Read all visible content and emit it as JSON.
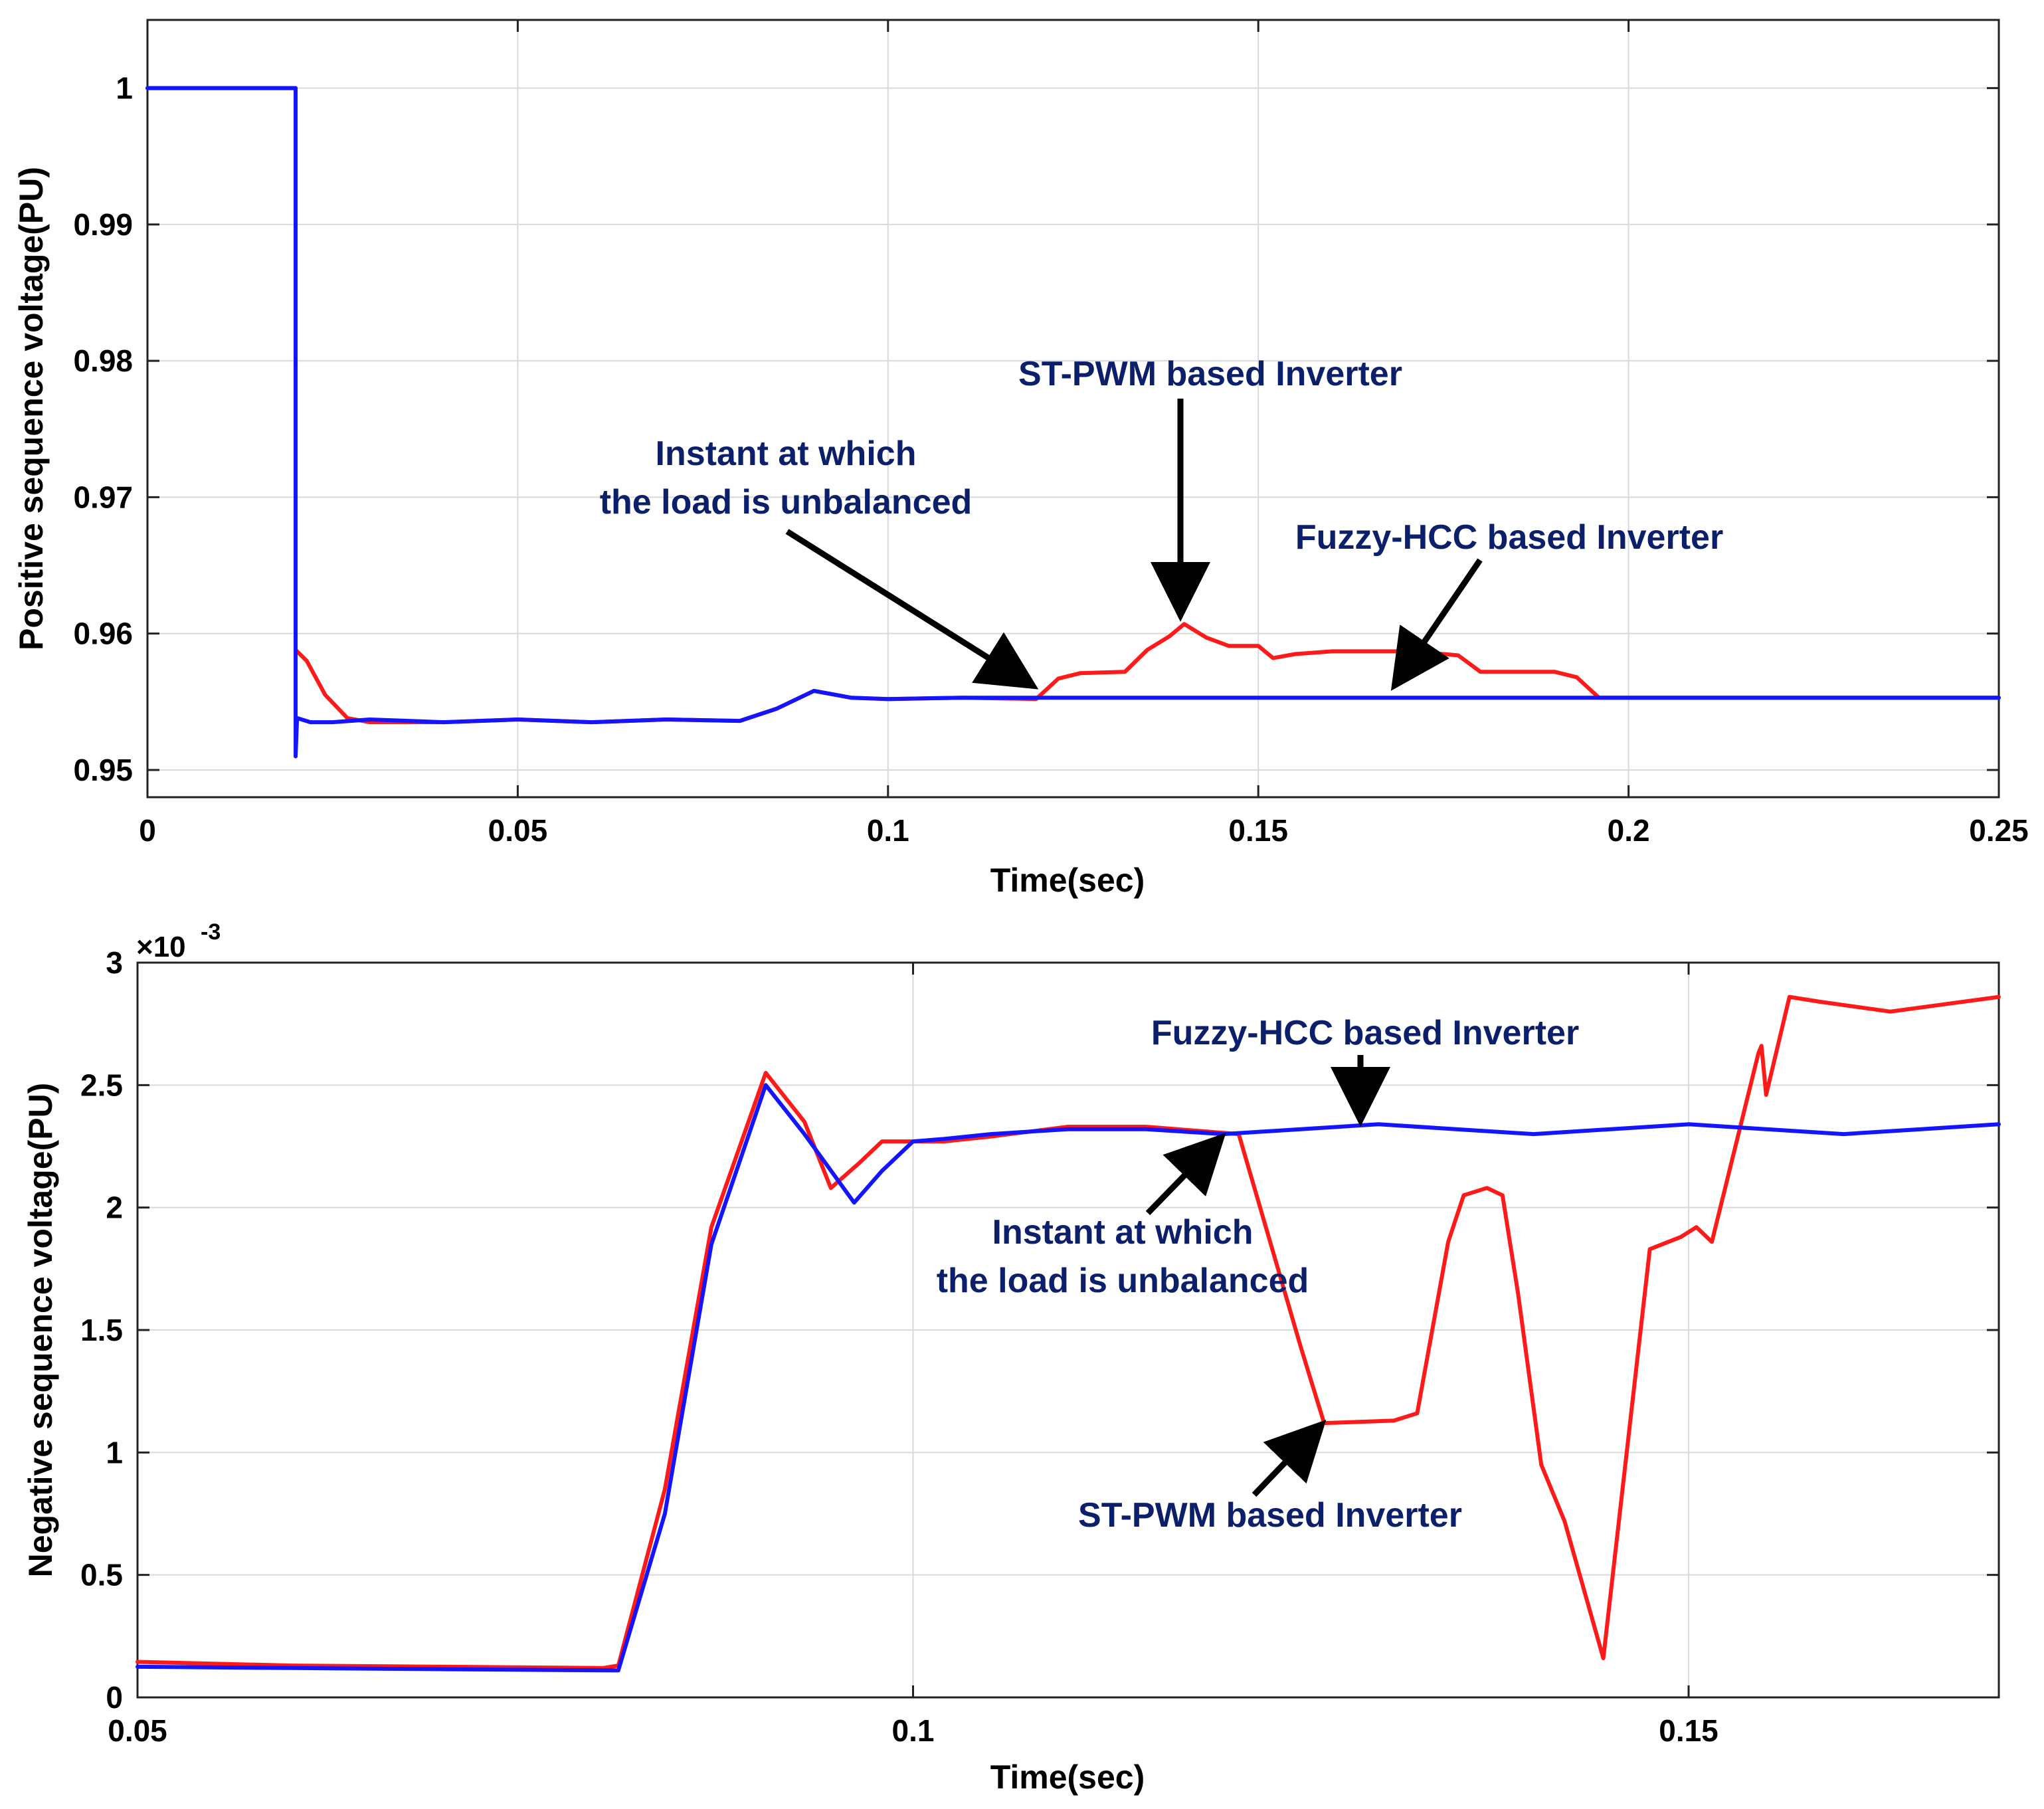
{
  "colors": {
    "st_pwm": "#ff1a1a",
    "fuzzy": "#1414ff",
    "annotation_text": "#0b1f6b",
    "grid": "#d9d9d9",
    "arrow": "#000000"
  },
  "chart_data": [
    {
      "type": "line",
      "xlabel": "Time(sec)",
      "ylabel": "Positive sequence voltage(PU)",
      "xlim": [
        0,
        0.25
      ],
      "ylim": [
        0.948,
        1.005
      ],
      "xticks": [
        0,
        0.05,
        0.1,
        0.15,
        0.2,
        0.25
      ],
      "xtick_labels": [
        "0",
        "0.05",
        "0.1",
        "0.15",
        "0.2",
        "0.25"
      ],
      "yticks": [
        0.95,
        0.96,
        0.97,
        0.98,
        0.99,
        1
      ],
      "ytick_labels": [
        "0.95",
        "0.96",
        "0.97",
        "0.98",
        "0.99",
        "1"
      ],
      "grid": true,
      "series": [
        {
          "name": "ST-PWM based Inverter",
          "color": "#ff1a1a",
          "x": [
            0,
            0.02,
            0.02,
            0.02,
            0.0215,
            0.024,
            0.027,
            0.03,
            0.04,
            0.05,
            0.06,
            0.07,
            0.08,
            0.085,
            0.09,
            0.095,
            0.1,
            0.11,
            0.12,
            0.123,
            0.126,
            0.132,
            0.135,
            0.138,
            0.14,
            0.143,
            0.146,
            0.15,
            0.152,
            0.155,
            0.16,
            0.17,
            0.175,
            0.177,
            0.18,
            0.19,
            0.193,
            0.196,
            0.2,
            0.22,
            0.25
          ],
          "y": [
            1.0,
            1.0,
            0.951,
            0.9588,
            0.958,
            0.9555,
            0.9538,
            0.9535,
            0.9535,
            0.9537,
            0.9535,
            0.9537,
            0.9536,
            0.9545,
            0.9558,
            0.9553,
            0.9552,
            0.9553,
            0.9552,
            0.9567,
            0.9571,
            0.9572,
            0.9588,
            0.9598,
            0.9607,
            0.9597,
            0.9591,
            0.9591,
            0.9582,
            0.9585,
            0.9587,
            0.9587,
            0.9585,
            0.9584,
            0.9572,
            0.9572,
            0.9568,
            0.9553,
            0.9553,
            0.9553,
            0.9553
          ]
        },
        {
          "name": "Fuzzy-HCC based Inverter",
          "color": "#1414ff",
          "x": [
            0,
            0.02,
            0.02,
            0.0202,
            0.022,
            0.025,
            0.03,
            0.04,
            0.05,
            0.06,
            0.07,
            0.08,
            0.085,
            0.09,
            0.095,
            0.1,
            0.11,
            0.12,
            0.13,
            0.14,
            0.15,
            0.16,
            0.17,
            0.18,
            0.19,
            0.2,
            0.25
          ],
          "y": [
            1.0,
            1.0,
            0.951,
            0.9538,
            0.9535,
            0.9535,
            0.9537,
            0.9535,
            0.9537,
            0.9535,
            0.9537,
            0.9536,
            0.9545,
            0.9558,
            0.9553,
            0.9552,
            0.9553,
            0.9553,
            0.9553,
            0.9553,
            0.9553,
            0.9553,
            0.9553,
            0.9553,
            0.9553,
            0.9553,
            0.9553
          ]
        }
      ],
      "annotations": [
        {
          "lines": [
            "ST-PWM based Inverter"
          ]
        },
        {
          "lines": [
            "Instant at which",
            "the load is unbalanced"
          ]
        },
        {
          "lines": [
            "Fuzzy-HCC based Inverter"
          ]
        }
      ]
    },
    {
      "type": "line",
      "xlabel": "Time(sec)",
      "ylabel": "Negative sequence voltage(PU)",
      "exponent_label": "×10",
      "exponent_power": "-3",
      "xlim": [
        0.05,
        0.17
      ],
      "ylim": [
        0,
        0.003
      ],
      "xticks": [
        0.05,
        0.1,
        0.15
      ],
      "xtick_labels": [
        "0.05",
        "0.1",
        "0.15"
      ],
      "yticks": [
        0,
        0.0005,
        0.001,
        0.0015,
        0.002,
        0.0025,
        0.003
      ],
      "ytick_labels": [
        "0",
        "0.5",
        "1",
        "1.5",
        "2",
        "2.5",
        "3"
      ],
      "grid": true,
      "series": [
        {
          "name": "ST-PWM based Inverter",
          "color": "#ff1a1a",
          "x": [
            0.05,
            0.06,
            0.07,
            0.08,
            0.081,
            0.084,
            0.087,
            0.0905,
            0.093,
            0.0947,
            0.0965,
            0.098,
            0.1,
            0.102,
            0.105,
            0.11,
            0.115,
            0.119,
            0.121,
            0.125,
            0.1265,
            0.131,
            0.1325,
            0.1345,
            0.1355,
            0.137,
            0.138,
            0.139,
            0.1405,
            0.142,
            0.1445,
            0.1475,
            0.1495,
            0.1505,
            0.1515,
            0.1545,
            0.1547,
            0.155,
            0.1565,
            0.1585,
            0.163,
            0.17
          ],
          "y": [
            0.000145,
            0.00013,
            0.000125,
            0.00012,
            0.00013,
            0.00085,
            0.00192,
            0.00255,
            0.00235,
            0.00208,
            0.00218,
            0.00227,
            0.00227,
            0.00227,
            0.00229,
            0.00233,
            0.00233,
            0.00231,
            0.0023,
            0.00143,
            0.00112,
            0.00113,
            0.00116,
            0.00186,
            0.00205,
            0.00208,
            0.00205,
            0.00165,
            0.00095,
            0.00072,
            0.00016,
            0.00183,
            0.00188,
            0.00192,
            0.00186,
            0.00263,
            0.00266,
            0.00246,
            0.00286,
            0.00284,
            0.0028,
            0.00286
          ]
        },
        {
          "name": "Fuzzy-HCC based Inverter",
          "color": "#1414ff",
          "x": [
            0.05,
            0.06,
            0.07,
            0.081,
            0.084,
            0.087,
            0.0905,
            0.093,
            0.0962,
            0.098,
            0.1,
            0.102,
            0.105,
            0.11,
            0.115,
            0.12,
            0.125,
            0.13,
            0.135,
            0.14,
            0.145,
            0.15,
            0.155,
            0.16,
            0.165,
            0.17
          ],
          "y": [
            0.000125,
            0.00012,
            0.000115,
            0.00011,
            0.00075,
            0.00185,
            0.0025,
            0.0023,
            0.00202,
            0.00215,
            0.00227,
            0.00228,
            0.0023,
            0.00232,
            0.00232,
            0.0023,
            0.00232,
            0.00234,
            0.00232,
            0.0023,
            0.00232,
            0.00234,
            0.00232,
            0.0023,
            0.00232,
            0.00234
          ]
        }
      ],
      "annotations": [
        {
          "lines": [
            "Fuzzy-HCC based Inverter"
          ]
        },
        {
          "lines": [
            "Instant at which",
            "the load is unbalanced"
          ]
        },
        {
          "lines": [
            "ST-PWM based Inverter"
          ]
        }
      ]
    }
  ]
}
